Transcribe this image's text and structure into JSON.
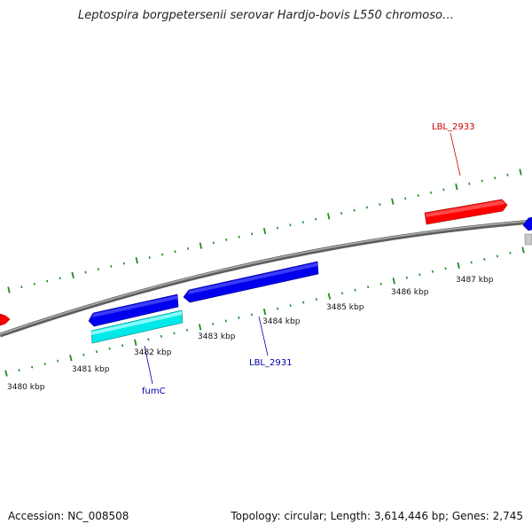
{
  "title": "Leptospira borgpetersenii serovar Hardjo-bovis L550 chromoso…",
  "footer": {
    "accession": "Accession: NC_008508",
    "topology": "Topology: circular; Length: 3,614,446 bp; Genes: 2,745"
  },
  "colors": {
    "backbone": "#8a8a8a",
    "ticks": "#1f8a1f",
    "gene_forward": "#ff0000",
    "gene_reverse": "#0000ee",
    "gene_rna": "#00e8e8",
    "gene_other": "#c8c8c8",
    "label_forward": "#cc0000",
    "label_reverse": "#0000aa"
  },
  "position_labels": [
    "3480 kbp",
    "3481 kbp",
    "3482 kbp",
    "3483 kbp",
    "3484 kbp",
    "3485 kbp",
    "3486 kbp",
    "3487 kbp"
  ],
  "gene_labels": [
    {
      "id": "lbl2933",
      "text": "LBL_2933",
      "strand": "forward"
    },
    {
      "id": "lbl2931",
      "text": "LBL_2931",
      "strand": "reverse"
    },
    {
      "id": "fumc",
      "text": "fumC",
      "strand": "reverse"
    }
  ]
}
